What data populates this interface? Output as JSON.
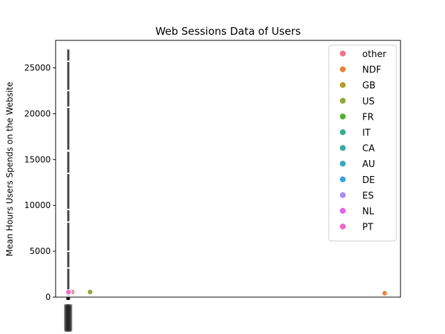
{
  "chart_data": {
    "type": "scatter",
    "title": "Web Sessions Data of Users",
    "xlabel": "",
    "ylabel": "Mean Hours Users Spends on the Website",
    "ylim": [
      0,
      28000
    ],
    "yticks": [
      0,
      5000,
      10000,
      15000,
      20000,
      25000
    ],
    "grid": false,
    "legend_position": "top-right",
    "x_tick_labels_overlapping": true,
    "series": [
      {
        "name": "other",
        "color": "#f77189",
        "points": [
          {
            "x": 12,
            "y": 560
          }
        ]
      },
      {
        "name": "NDF",
        "color": "#e6833a",
        "points": [
          {
            "x": 1000,
            "y": 420
          }
        ]
      },
      {
        "name": "GB",
        "color": "#b39c30",
        "points": [
          {
            "x": 3,
            "y": 540
          }
        ]
      },
      {
        "name": "US",
        "color": "#8fa93a",
        "points": [
          {
            "x": 69,
            "y": 560
          }
        ]
      },
      {
        "name": "FR",
        "color": "#4fb130",
        "points": [
          {
            "x": 5,
            "y": 580
          }
        ]
      },
      {
        "name": "IT",
        "color": "#34ae8e",
        "points": [
          {
            "x": 2,
            "y": 550
          }
        ]
      },
      {
        "name": "CA",
        "color": "#38aaa4",
        "points": [
          {
            "x": 2,
            "y": 530
          }
        ]
      },
      {
        "name": "AU",
        "color": "#3aa5bb",
        "points": [
          {
            "x": 1,
            "y": 520
          }
        ]
      },
      {
        "name": "DE",
        "color": "#3a9fe5",
        "points": [
          {
            "x": 2,
            "y": 550
          }
        ]
      },
      {
        "name": "ES",
        "color": "#a48cf4",
        "points": [
          {
            "x": 3,
            "y": 560
          }
        ]
      },
      {
        "name": "NL",
        "color": "#e261ef",
        "points": [
          {
            "x": 1,
            "y": 520
          }
        ]
      },
      {
        "name": "PT",
        "color": "#f466c8",
        "points": [
          {
            "x": 0.5,
            "y": 540
          }
        ]
      }
    ],
    "error_bar": {
      "color": "#3f3f3f",
      "x": 0,
      "low": 200,
      "high": 27000
    }
  }
}
